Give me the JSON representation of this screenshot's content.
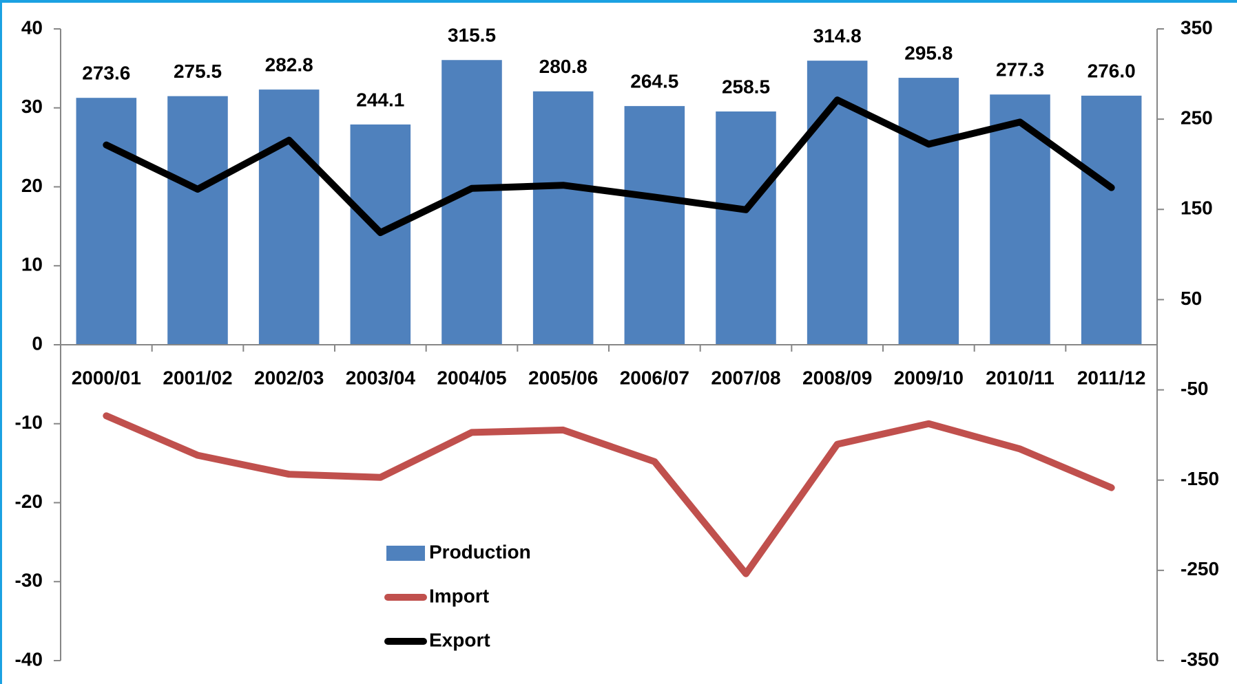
{
  "chart_data": {
    "type": "bar-line",
    "categories": [
      "2000/01",
      "2001/02",
      "2002/03",
      "2003/04",
      "2004/05",
      "2005/06",
      "2006/07",
      "2007/08",
      "2008/09",
      "2009/10",
      "2010/11",
      "2011/12"
    ],
    "series": [
      {
        "name": "Production",
        "type": "bar",
        "axis": "y2",
        "color": "#4f81bd",
        "values": [
          273.6,
          275.5,
          282.8,
          244.1,
          315.5,
          280.8,
          264.5,
          258.5,
          314.8,
          295.8,
          277.3,
          276.0
        ],
        "value_labels": [
          "273.6",
          "275.5",
          "282.8",
          "244.1",
          "315.5",
          "280.8",
          "264.5",
          "258.5",
          "314.8",
          "295.8",
          "277.3",
          "276.0"
        ]
      },
      {
        "name": "Import",
        "type": "line",
        "axis": "y",
        "color": "#c0504d",
        "values": [
          -9.0,
          -14.0,
          -16.4,
          -16.8,
          -11.1,
          -10.8,
          -14.8,
          -29.0,
          -12.6,
          -10.0,
          -13.2,
          -18.1
        ]
      },
      {
        "name": "Export",
        "type": "line",
        "axis": "y",
        "color": "#000000",
        "values": [
          25.3,
          19.7,
          25.9,
          14.2,
          19.8,
          20.2,
          18.7,
          17.1,
          31.0,
          25.4,
          28.2,
          19.9
        ]
      }
    ],
    "ylim": [
      -40,
      40
    ],
    "yticks": [
      -40,
      -30,
      -20,
      -10,
      0,
      10,
      20,
      30,
      40
    ],
    "y2lim": [
      -350,
      350
    ],
    "y2ticks": [
      -350,
      -250,
      -150,
      -50,
      50,
      150,
      250,
      350
    ],
    "legend": "lower-left"
  }
}
